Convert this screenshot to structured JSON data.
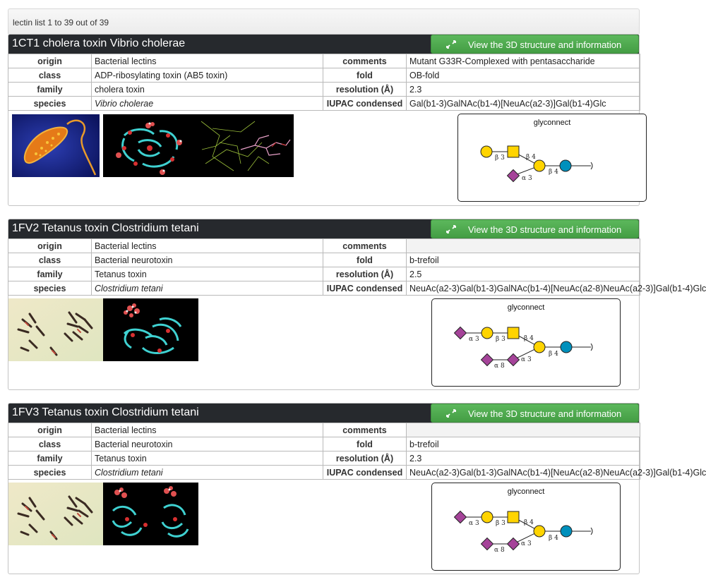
{
  "list_header": "lectin list 1 to 39 out of 39",
  "view_button_label": "View the 3D structure and information",
  "glycan_box_title": "glyconnect",
  "labels": {
    "origin": "origin",
    "class": "class",
    "family": "family",
    "species": "species",
    "comments": "comments",
    "fold": "fold",
    "resolution": "resolution (Å)",
    "iupac": "IUPAC condensed"
  },
  "entries": [
    {
      "title": "1CT1 cholera toxin Vibrio cholerae",
      "origin": "Bacterial lectins",
      "class": "ADP-ribosylating toxin (AB5 toxin)",
      "family": "cholera toxin",
      "species": "Vibrio cholerae",
      "comments": "Mutant G33R-Complexed with pentasaccharide",
      "fold": "OB-fold",
      "resolution": "2.3",
      "iupac": "Gal(b1-3)GalNAc(b1-4)[NeuAc(a2-3)]Gal(b1-4)Glc",
      "glycan_linkages": [
        "β 3",
        "β 4",
        "β 4",
        "α 3"
      ]
    },
    {
      "title": "1FV2 Tetanus toxin Clostridium tetani",
      "origin": "Bacterial lectins",
      "class": "Bacterial neurotoxin",
      "family": "Tetanus toxin",
      "species": "Clostridium tetani",
      "comments": "",
      "fold": "b-trefoil",
      "resolution": "2.5",
      "iupac": "NeuAc(a2-3)Gal(b1-3)GalNAc(b1-4)[NeuAc(a2-8)NeuAc(a2-3)]Gal(b1-4)Glc",
      "glycan_linkages": [
        "α 3",
        "β 3",
        "β 4",
        "β 4",
        "α 8",
        "α 3"
      ]
    },
    {
      "title": "1FV3 Tetanus toxin Clostridium tetani",
      "origin": "Bacterial lectins",
      "class": "Bacterial neurotoxin",
      "family": "Tetanus toxin",
      "species": "Clostridium tetani",
      "comments": "",
      "fold": "b-trefoil",
      "resolution": "2.3",
      "iupac": "NeuAc(a2-3)Gal(b1-3)GalNAc(b1-4)[NeuAc(a2-8)NeuAc(a2-3)]Gal(b1-4)Glc",
      "glycan_linkages": [
        "α 3",
        "β 3",
        "β 4",
        "β 4",
        "α 8",
        "α 3"
      ]
    }
  ],
  "colors": {
    "header_bg": "#26292d",
    "button_green": "#5cb85c",
    "galactose_yellow": "#FFD400",
    "galnac_yellow": "#FFD400",
    "glucose_blue": "#0090BC",
    "neuac_purple": "#A54399"
  }
}
